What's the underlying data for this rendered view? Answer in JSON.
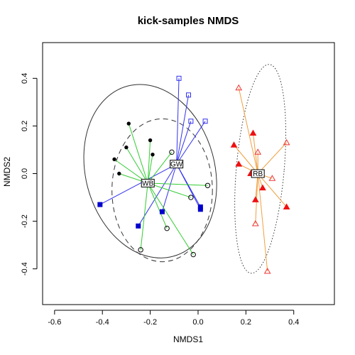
{
  "chart_data": {
    "type": "scatter",
    "title": "kick-samples NMDS",
    "xlabel": "NMDS1",
    "ylabel": "NMDS2",
    "xlim": [
      -0.65,
      0.57
    ],
    "ylim": [
      -0.55,
      0.55
    ],
    "x_ticks": [
      "-0.6",
      "-0.4",
      "-0.2",
      "0.0",
      "0.2",
      "0.4"
    ],
    "y_ticks": [
      "-0.4",
      "-0.2",
      "0.0",
      "0.2",
      "0.4"
    ],
    "x_tick_values": [
      -0.6,
      -0.4,
      -0.2,
      0.0,
      0.2,
      0.4
    ],
    "y_tick_values": [
      -0.4,
      -0.2,
      0.0,
      0.2,
      0.4
    ],
    "groups": [
      {
        "name": "GW",
        "centroid": [
          -0.09,
          0.04
        ],
        "spider_color": "#3333ee",
        "ellipse": {
          "cx": -0.2,
          "cy": 0.01,
          "rx": 0.27,
          "ry": 0.37,
          "angle_deg": 15,
          "style": "solid",
          "color": "#333333"
        },
        "points": [
          {
            "x": -0.08,
            "y": 0.4,
            "shape": "open-square",
            "color": "#3333ee"
          },
          {
            "x": -0.04,
            "y": 0.33,
            "shape": "open-square",
            "color": "#3333ee"
          },
          {
            "x": -0.03,
            "y": 0.22,
            "shape": "open-square",
            "color": "#3333ee"
          },
          {
            "x": 0.03,
            "y": 0.22,
            "shape": "open-square",
            "color": "#3333ee"
          },
          {
            "x": -0.41,
            "y": -0.13,
            "shape": "filled-square",
            "color": "#0000cc"
          },
          {
            "x": -0.25,
            "y": -0.22,
            "shape": "filled-square",
            "color": "#0000cc"
          },
          {
            "x": -0.15,
            "y": -0.16,
            "shape": "filled-square",
            "color": "#0000cc"
          },
          {
            "x": 0.01,
            "y": -0.14,
            "shape": "filled-square",
            "color": "#0000cc"
          },
          {
            "x": 0.01,
            "y": -0.15,
            "shape": "filled-square",
            "color": "#0000cc"
          }
        ]
      },
      {
        "name": "WB",
        "centroid": [
          -0.21,
          -0.04
        ],
        "spider_color": "#33cc33",
        "ellipse": {
          "cx": -0.15,
          "cy": -0.07,
          "rx": 0.21,
          "ry": 0.3,
          "angle_deg": 0,
          "style": "dashed",
          "color": "#333333"
        },
        "points": [
          {
            "x": -0.29,
            "y": 0.21,
            "shape": "filled-circle",
            "color": "#000000"
          },
          {
            "x": -0.2,
            "y": 0.14,
            "shape": "filled-circle",
            "color": "#000000"
          },
          {
            "x": -0.3,
            "y": 0.11,
            "shape": "filled-circle",
            "color": "#000000"
          },
          {
            "x": -0.19,
            "y": 0.08,
            "shape": "filled-circle",
            "color": "#000000"
          },
          {
            "x": -0.35,
            "y": 0.06,
            "shape": "filled-circle",
            "color": "#000000"
          },
          {
            "x": -0.33,
            "y": 0.0,
            "shape": "filled-circle",
            "color": "#000000"
          },
          {
            "x": -0.11,
            "y": 0.09,
            "shape": "open-circle",
            "color": "#000000"
          },
          {
            "x": 0.04,
            "y": -0.05,
            "shape": "open-circle",
            "color": "#000000"
          },
          {
            "x": -0.03,
            "y": -0.1,
            "shape": "open-circle",
            "color": "#000000"
          },
          {
            "x": -0.13,
            "y": -0.23,
            "shape": "open-circle",
            "color": "#000000"
          },
          {
            "x": -0.24,
            "y": -0.32,
            "shape": "open-circle",
            "color": "#000000"
          },
          {
            "x": -0.02,
            "y": -0.34,
            "shape": "open-circle",
            "color": "#000000"
          }
        ]
      },
      {
        "name": "RB",
        "centroid": [
          0.25,
          0.0
        ],
        "spider_color": "#f0a040",
        "ellipse": {
          "cx": 0.26,
          "cy": 0.02,
          "rx": 0.1,
          "ry": 0.44,
          "angle_deg": -5,
          "style": "dotted",
          "color": "#333333"
        },
        "points": [
          {
            "x": 0.17,
            "y": 0.36,
            "shape": "open-triangle",
            "color": "#ee3333"
          },
          {
            "x": 0.37,
            "y": 0.13,
            "shape": "open-triangle",
            "color": "#ee3333"
          },
          {
            "x": 0.25,
            "y": 0.09,
            "shape": "open-triangle",
            "color": "#ee3333"
          },
          {
            "x": 0.31,
            "y": -0.02,
            "shape": "open-triangle",
            "color": "#ee3333"
          },
          {
            "x": 0.24,
            "y": -0.21,
            "shape": "open-triangle",
            "color": "#ee3333"
          },
          {
            "x": 0.29,
            "y": -0.41,
            "shape": "open-triangle",
            "color": "#ee3333"
          },
          {
            "x": 0.23,
            "y": 0.17,
            "shape": "filled-triangle",
            "color": "#ee1111"
          },
          {
            "x": 0.15,
            "y": 0.12,
            "shape": "filled-triangle",
            "color": "#ee1111"
          },
          {
            "x": 0.17,
            "y": 0.04,
            "shape": "filled-triangle",
            "color": "#ee1111"
          },
          {
            "x": 0.22,
            "y": 0.0,
            "shape": "filled-triangle",
            "color": "#ee1111"
          },
          {
            "x": 0.24,
            "y": -0.11,
            "shape": "filled-triangle",
            "color": "#ee1111"
          },
          {
            "x": 0.27,
            "y": -0.06,
            "shape": "filled-triangle",
            "color": "#ee1111"
          },
          {
            "x": 0.37,
            "y": -0.14,
            "shape": "filled-triangle",
            "color": "#ee1111"
          }
        ]
      }
    ]
  }
}
